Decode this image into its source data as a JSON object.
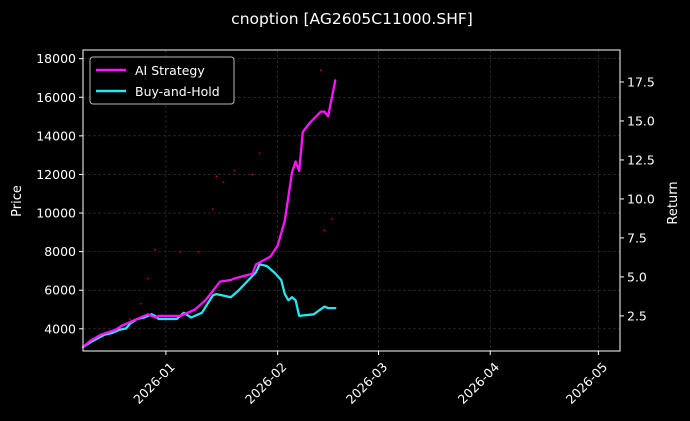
{
  "chart_data": {
    "type": "line",
    "title": "cnoption [AG2605C11000.SHF]",
    "xlabel": "",
    "ylabel": "Price",
    "y2label": "Return",
    "xlim": [
      "2025-12-09",
      "2026-05-07"
    ],
    "ylim": [
      2850,
      18450
    ],
    "y2lim": [
      0.25,
      19.55
    ],
    "x_ticks": [
      "2026-01",
      "2026-02",
      "2026-03",
      "2026-04",
      "2026-05"
    ],
    "y_ticks": [
      4000,
      6000,
      8000,
      10000,
      12000,
      14000,
      16000,
      18000
    ],
    "y2_ticks": [
      "2.5",
      "5.0",
      "7.5",
      "10.0",
      "12.5",
      "15.0",
      "17.5"
    ],
    "grid": true,
    "legend_position": "top-left",
    "colors": {
      "background": "#000000",
      "ai": "#ff14ff",
      "bh": "#29e6f0",
      "price_dots": "#cc0000",
      "grid": "#3a3a3a",
      "axis": "#ffffff"
    },
    "series": [
      {
        "name": "AI Strategy",
        "axis": "right",
        "x": [
          "2025-12-09",
          "2025-12-11",
          "2025-12-14",
          "2025-12-18",
          "2025-12-20",
          "2025-12-24",
          "2025-12-27",
          "2025-12-29",
          "2025-12-30",
          "2026-01-05",
          "2026-01-09",
          "2026-01-12",
          "2026-01-16",
          "2026-01-19",
          "2026-01-20",
          "2026-01-25",
          "2026-01-26",
          "2026-01-30",
          "2026-02-01",
          "2026-02-03",
          "2026-02-05",
          "2026-02-06",
          "2026-02-07",
          "2026-02-08",
          "2026-02-10",
          "2026-02-13",
          "2026-02-14",
          "2026-02-15",
          "2026-02-17"
        ],
        "values": [
          0.5,
          0.9,
          1.3,
          1.6,
          1.9,
          2.3,
          2.6,
          2.4,
          2.5,
          2.5,
          2.9,
          3.5,
          4.7,
          4.8,
          4.9,
          5.2,
          5.8,
          6.3,
          7.0,
          8.6,
          11.7,
          12.4,
          11.8,
          14.3,
          14.9,
          15.6,
          15.6,
          15.3,
          17.6
        ]
      },
      {
        "name": "Buy-and-Hold",
        "axis": "right",
        "x": [
          "2025-12-09",
          "2025-12-11",
          "2025-12-15",
          "2025-12-17",
          "2025-12-19",
          "2025-12-21",
          "2025-12-22",
          "2025-12-24",
          "2025-12-26",
          "2025-12-28",
          "2025-12-29",
          "2025-12-30",
          "2026-01-04",
          "2026-01-06",
          "2026-01-08",
          "2026-01-11",
          "2026-01-14",
          "2026-01-15",
          "2026-01-17",
          "2026-01-19",
          "2026-01-21",
          "2026-01-26",
          "2026-01-27",
          "2026-01-29",
          "2026-01-31",
          "2026-02-02",
          "2026-02-03",
          "2026-02-04",
          "2026-02-05",
          "2026-02-06",
          "2026-02-07",
          "2026-02-11",
          "2026-02-14",
          "2026-02-15",
          "2026-02-17"
        ],
        "values": [
          0.5,
          0.8,
          1.3,
          1.4,
          1.6,
          1.7,
          2.0,
          2.3,
          2.4,
          2.6,
          2.5,
          2.3,
          2.3,
          2.7,
          2.4,
          2.7,
          3.8,
          3.9,
          3.8,
          3.7,
          4.1,
          5.3,
          5.8,
          5.7,
          5.3,
          4.8,
          3.9,
          3.5,
          3.7,
          3.5,
          2.5,
          2.6,
          3.1,
          3.0,
          3.0
        ]
      },
      {
        "name": "",
        "axis": "left",
        "style": "dots",
        "x": [
          "2025-12-22",
          "2025-12-25",
          "2025-12-27",
          "2025-12-29",
          "2026-01-05",
          "2026-01-10",
          "2026-01-14",
          "2026-01-15",
          "2026-01-17",
          "2026-01-20",
          "2026-01-25",
          "2026-01-27",
          "2026-02-13",
          "2026-02-14",
          "2026-02-16"
        ],
        "values": [
          4500,
          5300,
          6600,
          8100,
          8000,
          8000,
          10200,
          11900,
          11600,
          12200,
          12000,
          13100,
          17400,
          9100,
          9700
        ]
      }
    ]
  }
}
